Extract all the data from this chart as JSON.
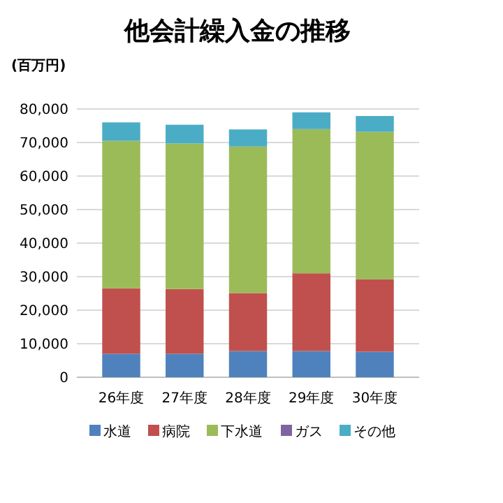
{
  "chart_data": {
    "type": "bar",
    "title": "他会計繰入金の推移",
    "ylabel": "(百万円)",
    "stacked": true,
    "categories": [
      "26年度",
      "27年度",
      "28年度",
      "29年度",
      "30年度"
    ],
    "series": [
      {
        "name": "水道",
        "color": "#4f81bd",
        "values": [
          7000,
          7000,
          7800,
          7800,
          7600
        ]
      },
      {
        "name": "病院",
        "color": "#c0504d",
        "values": [
          19500,
          19300,
          17300,
          23200,
          21600
        ]
      },
      {
        "name": "下水道",
        "color": "#9bbb59",
        "values": [
          44000,
          43400,
          43700,
          43000,
          44000
        ]
      },
      {
        "name": "ガス",
        "color": "#8064a2",
        "values": [
          0,
          0,
          0,
          0,
          0
        ]
      },
      {
        "name": "その他",
        "color": "#4bacc6",
        "values": [
          5500,
          5600,
          5100,
          5000,
          4700
        ]
      }
    ],
    "ylim": [
      0,
      80000
    ],
    "yticks": [
      0,
      {
        "value": 10000,
        "label": "10,000"
      },
      {
        "value": 20000,
        "label": "20,000"
      },
      {
        "value": 30000,
        "label": "30,000"
      },
      {
        "value": 40000,
        "label": "40,000"
      },
      {
        "value": 50000,
        "label": "50,000"
      },
      {
        "value": 60000,
        "label": "60,000"
      },
      {
        "value": 70000,
        "label": "70,000"
      },
      {
        "value": 80000,
        "label": "80,000"
      }
    ],
    "grid": "y",
    "legend": "bottom"
  }
}
